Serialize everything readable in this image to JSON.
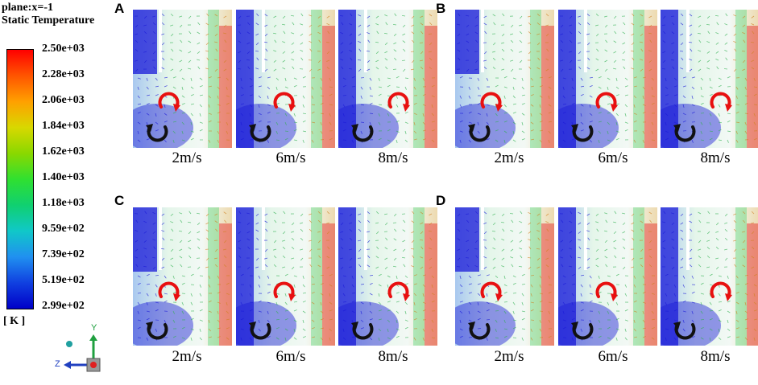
{
  "legend": {
    "plane": "plane:x=-1",
    "quantity": "Static Temperature",
    "ticks": [
      "2.50e+03",
      "2.28e+03",
      "2.06e+03",
      "1.84e+03",
      "1.62e+03",
      "1.40e+03",
      "1.18e+03",
      "9.59e+02",
      "7.39e+02",
      "5.19e+02",
      "2.99e+02"
    ],
    "unit": "[ K ]"
  },
  "axes": {
    "y_label": "Y",
    "z_label": "Z"
  },
  "panels": [
    {
      "letter": "A",
      "speeds": [
        "2m/s",
        "6m/s",
        "8m/s"
      ]
    },
    {
      "letter": "B",
      "speeds": [
        "2m/s",
        "6m/s",
        "8m/s"
      ]
    },
    {
      "letter": "C",
      "speeds": [
        "2m/s",
        "6m/s",
        "8m/s"
      ]
    },
    {
      "letter": "D",
      "speeds": [
        "2m/s",
        "6m/s",
        "8m/s"
      ]
    }
  ],
  "colors": {
    "hot": "#e52020",
    "cold": "#1a1ad8",
    "mid": "#30d060",
    "arrow_red": "#e81010",
    "arrow_black": "#111111"
  }
}
